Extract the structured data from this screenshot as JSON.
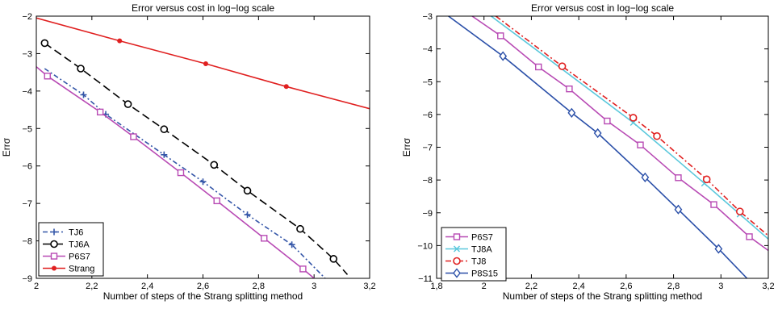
{
  "chart_data": [
    {
      "type": "line",
      "title": "Error versus cost in log−log  scale",
      "xlabel": "Number of steps of the Strang splitting method",
      "ylabel": "Errσ",
      "xlim": [
        2,
        3.2
      ],
      "ylim": [
        -9,
        -2
      ],
      "xticks": [
        "2",
        "2,2",
        "2,4",
        "2,6",
        "2,8",
        "3",
        "3,2"
      ],
      "yticks": [
        "−2",
        "−3",
        "−4",
        "−5",
        "−6",
        "−7",
        "−8",
        "−9"
      ],
      "legend_position": "bottom-left",
      "series": [
        {
          "name": "TJ6",
          "color": "#3456a8",
          "dash": "6,3,2,3",
          "marker": "plus",
          "x": [
            2.03,
            2.17,
            2.25,
            2.46,
            2.6,
            2.76,
            2.92,
            3.04
          ],
          "y": [
            -3.4,
            -4.1,
            -4.62,
            -5.7,
            -6.42,
            -7.3,
            -8.1,
            -9.0
          ],
          "marker_x": [
            2.17,
            2.25,
            2.46,
            2.6,
            2.76,
            2.92
          ]
        },
        {
          "name": "TJ6A",
          "color": "#000000",
          "dash": "10,5",
          "marker": "circle",
          "x": [
            2.03,
            2.16,
            2.33,
            2.46,
            2.64,
            2.76,
            2.95,
            3.07,
            3.12
          ],
          "y": [
            -2.72,
            -3.4,
            -4.35,
            -5.02,
            -5.97,
            -6.66,
            -7.68,
            -8.48,
            -8.9
          ],
          "marker_x": [
            2.03,
            2.16,
            2.33,
            2.46,
            2.64,
            2.76,
            2.95,
            3.07
          ]
        },
        {
          "name": "P6S7",
          "color": "#b84ab4",
          "dash": "",
          "marker": "square",
          "x": [
            2.0,
            2.04,
            2.23,
            2.35,
            2.52,
            2.65,
            2.82,
            2.96,
            3.0
          ],
          "y": [
            -3.35,
            -3.6,
            -4.56,
            -5.22,
            -6.18,
            -6.93,
            -7.93,
            -8.75,
            -9.0
          ],
          "marker_x": [
            2.04,
            2.23,
            2.35,
            2.52,
            2.65,
            2.82,
            2.96
          ]
        },
        {
          "name": "Strang",
          "color": "#e02020",
          "dash": "",
          "marker": "dot",
          "x": [
            2.0,
            2.3,
            2.61,
            2.9,
            3.2
          ],
          "y": [
            -2.05,
            -2.66,
            -3.27,
            -3.88,
            -4.47
          ],
          "marker_x": [
            2.3,
            2.61,
            2.9
          ]
        }
      ]
    },
    {
      "type": "line",
      "title": "Error versus cost in log−log  scale",
      "xlabel": "Number of steps of the Strang splitting method",
      "ylabel": "Errσ",
      "xlim": [
        1.8,
        3.2
      ],
      "ylim": [
        -11,
        -3
      ],
      "xticks": [
        "1,8",
        "2",
        "2,2",
        "2,4",
        "2,6",
        "2,8",
        "3",
        "3,2"
      ],
      "yticks": [
        "−3",
        "−4",
        "−5",
        "−6",
        "−7",
        "−8",
        "−9",
        "−10",
        "−11"
      ],
      "legend_position": "bottom-left",
      "series": [
        {
          "name": "P6S7",
          "color": "#b84ab4",
          "dash": "",
          "marker": "square",
          "x": [
            1.95,
            2.07,
            2.23,
            2.36,
            2.52,
            2.66,
            2.82,
            2.97,
            3.12,
            3.2
          ],
          "y": [
            -3.0,
            -3.6,
            -4.55,
            -5.22,
            -6.2,
            -6.93,
            -7.93,
            -8.75,
            -9.73,
            -10.15
          ],
          "marker_x": [
            2.07,
            2.23,
            2.36,
            2.52,
            2.66,
            2.82,
            2.97,
            3.12
          ]
        },
        {
          "name": "TJ8A",
          "color": "#5bc8dc",
          "dash": "",
          "marker": "x",
          "x": [
            2.03,
            2.33,
            2.63,
            2.93,
            3.2
          ],
          "y": [
            -3.0,
            -4.62,
            -6.25,
            -8.1,
            -9.8
          ],
          "marker_x": [
            2.63,
            2.93,
            3.08
          ]
        },
        {
          "name": "TJ8",
          "color": "#e02020",
          "dash": "7,3,2,3",
          "marker": "circle",
          "x": [
            2.05,
            2.33,
            2.63,
            2.73,
            2.94,
            3.08,
            3.2
          ],
          "y": [
            -3.0,
            -4.53,
            -6.1,
            -6.66,
            -7.98,
            -8.96,
            -9.7
          ],
          "marker_x": [
            2.33,
            2.63,
            2.73,
            2.94,
            3.08
          ]
        },
        {
          "name": "P8S15",
          "color": "#2a4fa8",
          "dash": "",
          "marker": "diamond",
          "x": [
            1.85,
            2.08,
            2.37,
            2.48,
            2.68,
            2.82,
            2.99,
            3.11
          ],
          "y": [
            -3.0,
            -4.22,
            -5.95,
            -6.57,
            -7.92,
            -8.9,
            -10.1,
            -11.0
          ],
          "marker_x": [
            2.08,
            2.37,
            2.48,
            2.68,
            2.82,
            2.99
          ]
        }
      ]
    }
  ]
}
